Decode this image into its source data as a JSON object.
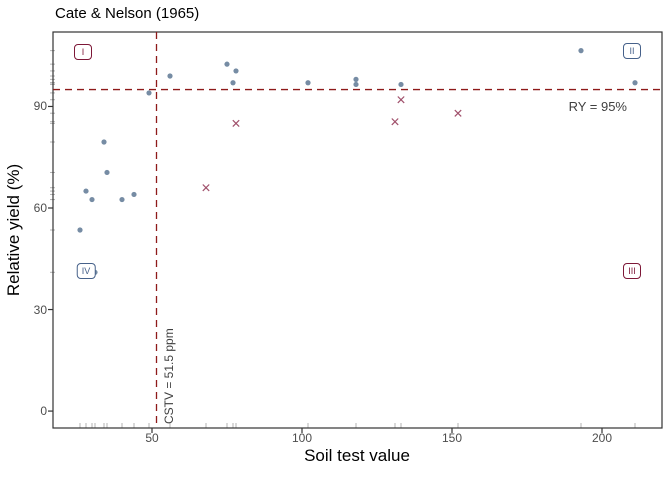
{
  "title": "Cate & Nelson (1965)",
  "x_axis": {
    "label": "Soil test value",
    "ticks": [
      50,
      100,
      150,
      200
    ],
    "range": [
      17,
      220
    ]
  },
  "y_axis": {
    "label": "Relative yield (%)",
    "ticks": [
      0,
      30,
      60,
      90
    ],
    "range": [
      -5,
      112
    ]
  },
  "annotations": {
    "ry_label": "RY = 95%",
    "cstv_label": "CSTV = 51.5 ppm"
  },
  "quadrants": [
    {
      "label": "I",
      "color": "#7d1737",
      "position": "top-left"
    },
    {
      "label": "II",
      "color": "#46618a",
      "position": "top-right"
    },
    {
      "label": "III",
      "color": "#7d1737",
      "position": "bottom-right"
    },
    {
      "label": "IV",
      "color": "#46618a",
      "position": "bottom-left"
    }
  ],
  "chart_data": {
    "type": "scatter",
    "title": "Cate & Nelson (1965)",
    "xlabel": "Soil test value",
    "ylabel": "Relative yield (%)",
    "xlim": [
      17,
      220
    ],
    "ylim": [
      -5,
      112
    ],
    "grid": false,
    "legend": "none",
    "reference_lines": [
      {
        "axis": "x",
        "value": 51.5,
        "style": "dashed",
        "color": "#8e1a1a",
        "label": "CSTV = 51.5 ppm"
      },
      {
        "axis": "y",
        "value": 95,
        "style": "dashed",
        "color": "#8e1a1a",
        "label": "RY = 95%"
      }
    ],
    "series": [
      {
        "name": "classified-points",
        "marker": "circle",
        "color": "#67809a",
        "points": [
          [
            26,
            53.5
          ],
          [
            28,
            65
          ],
          [
            30,
            62.5
          ],
          [
            31,
            41
          ],
          [
            34,
            79.5
          ],
          [
            35,
            70.5
          ],
          [
            40,
            62.5
          ],
          [
            44,
            64
          ],
          [
            49,
            94
          ],
          [
            56,
            99
          ],
          [
            75,
            102.5
          ],
          [
            77,
            97
          ],
          [
            78,
            100.5
          ],
          [
            102,
            97
          ],
          [
            118,
            96.5
          ],
          [
            118,
            98
          ],
          [
            133,
            96.5
          ],
          [
            193,
            106.5
          ],
          [
            211,
            97
          ]
        ]
      },
      {
        "name": "misclassified-points",
        "marker": "x",
        "color": "#a0506b",
        "points": [
          [
            68,
            66
          ],
          [
            78,
            85
          ],
          [
            131,
            85.5
          ],
          [
            133,
            92
          ],
          [
            152,
            88
          ]
        ]
      }
    ],
    "rug": "x-and-y-margins"
  },
  "colors": {
    "dashed_line": "#8e1a1a",
    "panel_border": "#333333",
    "tick": "#333333",
    "tick_label": "#4d4d4d",
    "annotation_text": "#404040",
    "rug": "#b3b3b3"
  }
}
